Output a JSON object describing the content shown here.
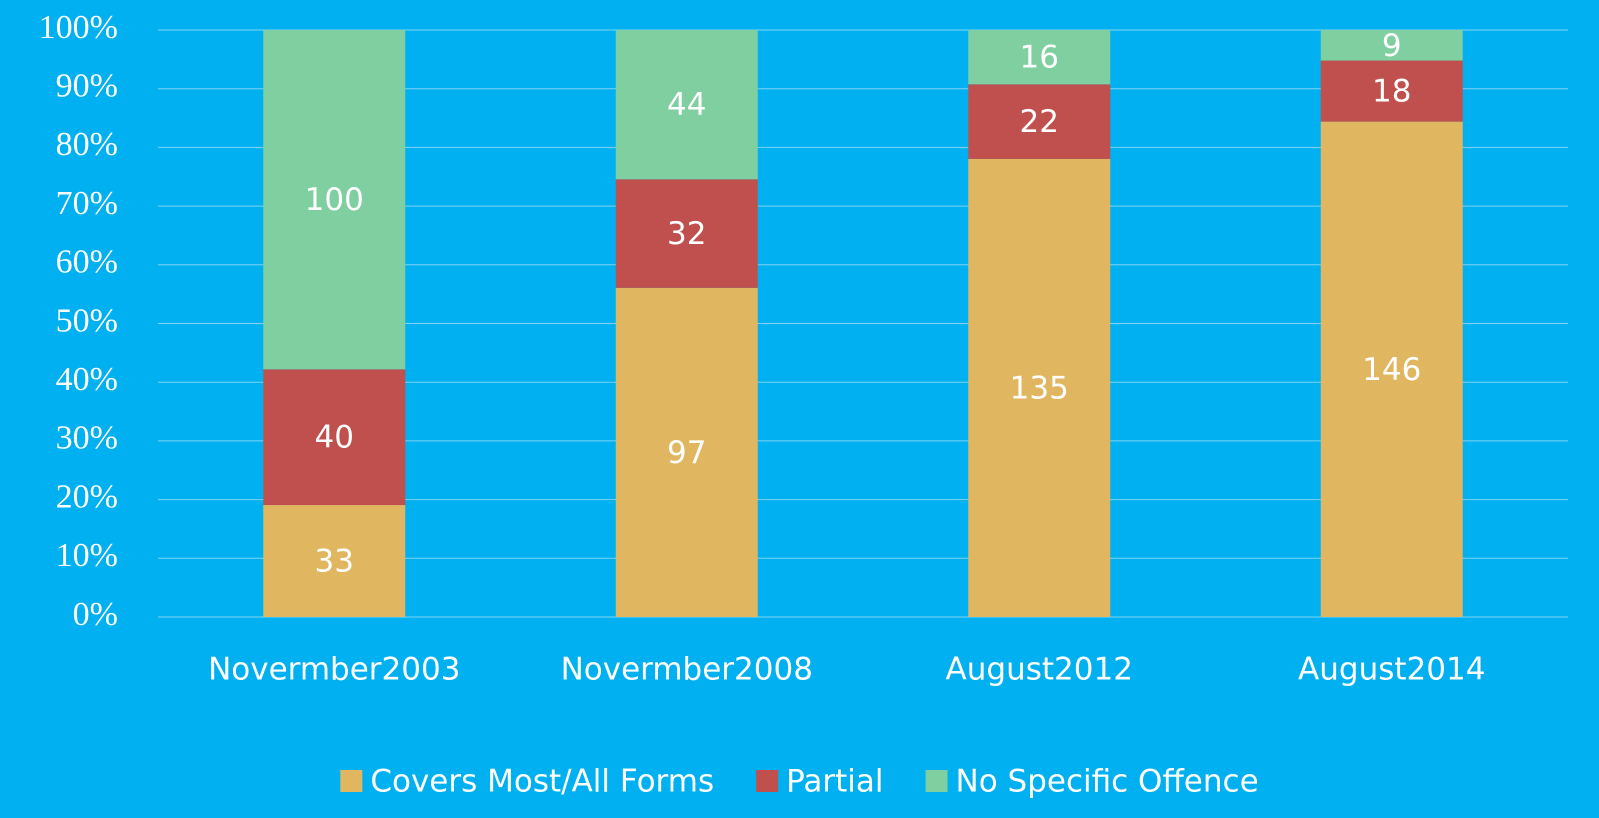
{
  "chart_data": {
    "type": "bar",
    "stack": "percent",
    "categories": [
      "Novermber2003",
      "Novermber2008",
      "August2012",
      "August2014"
    ],
    "series": [
      {
        "name": "Covers Most/All Forms",
        "color": "#e1b660",
        "values": [
          33,
          97,
          135,
          146
        ]
      },
      {
        "name": "Partial",
        "color": "#c0504d",
        "values": [
          40,
          32,
          22,
          18
        ]
      },
      {
        "name": "No Specific Offence",
        "color": "#7fcfa0",
        "values": [
          100,
          44,
          16,
          9
        ]
      }
    ],
    "ylim": [
      0,
      100
    ],
    "yticks": [
      {
        "value": 0,
        "label": "0%"
      },
      {
        "value": 10,
        "label": "10%"
      },
      {
        "value": 20,
        "label": "20%"
      },
      {
        "value": 30,
        "label": "30%"
      },
      {
        "value": 40,
        "label": "40%"
      },
      {
        "value": 50,
        "label": "50%"
      },
      {
        "value": 60,
        "label": "60%"
      },
      {
        "value": 70,
        "label": "70%"
      },
      {
        "value": 80,
        "label": "80%"
      },
      {
        "value": 90,
        "label": "90%"
      },
      {
        "value": 100,
        "label": "100%"
      }
    ],
    "grid": true,
    "legend": "bottom"
  }
}
